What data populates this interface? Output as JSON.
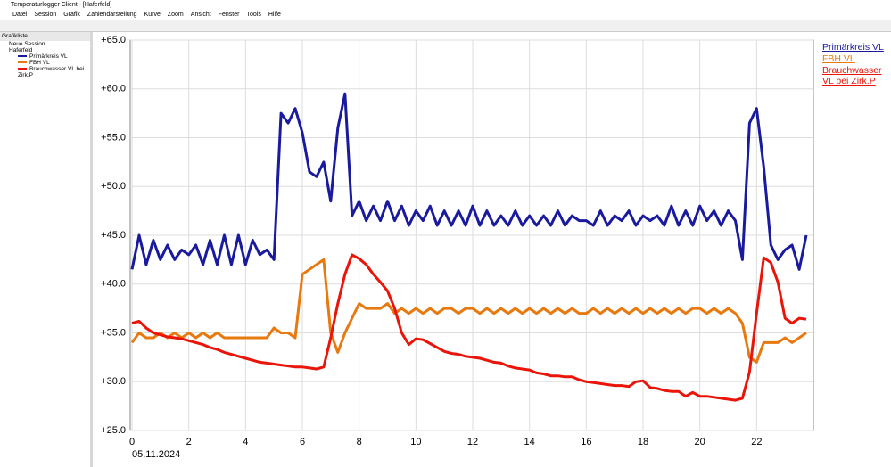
{
  "window": {
    "title": "Temperaturlogger Client - [Haferfeld]",
    "menu": [
      "Datei",
      "Session",
      "Grafik",
      "Zahlendarstellung",
      "Kurve",
      "Zoom",
      "Ansicht",
      "Fenster",
      "Tools",
      "Hilfe"
    ]
  },
  "panel": {
    "title": "Grafikliste",
    "items": [
      "Neue Session",
      "Haferfeld",
      "Primärkreis VL",
      "FBH VL",
      "Brauchwasser VL bei Zirk.P"
    ]
  },
  "chart_data": {
    "type": "line",
    "x_start_label": "05.11.2024",
    "x": [
      0,
      0.25,
      0.5,
      0.75,
      1,
      1.25,
      1.5,
      1.75,
      2,
      2.25,
      2.5,
      2.75,
      3,
      3.25,
      3.5,
      3.75,
      4,
      4.25,
      4.5,
      4.75,
      5,
      5.25,
      5.5,
      5.75,
      6,
      6.25,
      6.5,
      6.75,
      7,
      7.25,
      7.5,
      7.75,
      8,
      8.25,
      8.5,
      8.75,
      9,
      9.25,
      9.5,
      9.75,
      10,
      10.25,
      10.5,
      10.75,
      11,
      11.25,
      11.5,
      11.75,
      12,
      12.25,
      12.5,
      12.75,
      13,
      13.25,
      13.5,
      13.75,
      14,
      14.25,
      14.5,
      14.75,
      15,
      15.25,
      15.5,
      15.75,
      16,
      16.25,
      16.5,
      16.75,
      17,
      17.25,
      17.5,
      17.75,
      18,
      18.25,
      18.5,
      18.75,
      19,
      19.25,
      19.5,
      19.75,
      20,
      20.25,
      20.5,
      20.75,
      21,
      21.25,
      21.5,
      21.75,
      22,
      22.25,
      22.5,
      22.75,
      23,
      23.25,
      23.5,
      23.75
    ],
    "series": [
      {
        "name": "Primärkreis VL",
        "color": "#1a1a9e",
        "values": [
          41.5,
          45,
          42,
          44.5,
          42.5,
          44,
          42.5,
          43.5,
          43,
          44,
          42,
          44.5,
          42,
          45,
          42,
          45,
          42,
          44.5,
          43,
          43.5,
          42.5,
          57.5,
          56.5,
          58,
          55.5,
          51.5,
          51,
          52.5,
          48.5,
          56,
          59.5,
          47,
          48.5,
          46.5,
          48,
          46.5,
          48.5,
          46.5,
          48,
          46,
          47.5,
          46.5,
          48,
          46,
          47.5,
          46,
          47.5,
          46,
          48,
          46,
          47.5,
          46,
          47,
          46,
          47.5,
          46,
          47,
          46,
          47,
          46,
          47.5,
          46,
          47,
          46.5,
          46.5,
          46,
          47.5,
          46,
          47,
          46.5,
          47.5,
          46,
          47,
          46.5,
          47,
          46,
          48,
          46,
          47.5,
          46,
          48,
          46.5,
          47.5,
          46,
          47.5,
          46.5,
          42.5,
          56.5,
          58,
          52,
          44,
          42.5,
          43.5,
          44,
          41.5,
          45
        ]
      },
      {
        "name": "FBH VL",
        "color": "#e8790f",
        "values": [
          34,
          35,
          34.5,
          34.5,
          35,
          34.5,
          35,
          34.5,
          35,
          34.5,
          35,
          34.5,
          35,
          34.5,
          34.5,
          34.5,
          34.5,
          34.5,
          34.5,
          34.5,
          35.5,
          35,
          35,
          34.5,
          41,
          41.5,
          42,
          42.5,
          35,
          33,
          35,
          36.5,
          38,
          37.5,
          37.5,
          37.5,
          38,
          37,
          37.5,
          37,
          37.5,
          37,
          37.5,
          37,
          37.5,
          37.5,
          37,
          37.5,
          37.5,
          37,
          37.5,
          37,
          37.5,
          37,
          37.5,
          37,
          37.5,
          37,
          37.5,
          37,
          37.5,
          37,
          37.5,
          37,
          37,
          37.5,
          37,
          37.5,
          37,
          37.5,
          37,
          37.5,
          37,
          37.5,
          37,
          37.5,
          37,
          37.5,
          37,
          37.5,
          37.5,
          37,
          37.5,
          37,
          37.5,
          37,
          36,
          32.5,
          32,
          34,
          34,
          34,
          34.5,
          34,
          34.5,
          35
        ]
      },
      {
        "name": "Brauchwasser VL bei Zirk.P",
        "color": "#ea1409",
        "values": [
          36,
          36.2,
          35.5,
          35,
          34.8,
          34.6,
          34.5,
          34.4,
          34.2,
          34,
          33.8,
          33.5,
          33.3,
          33,
          32.8,
          32.6,
          32.4,
          32.2,
          32,
          31.9,
          31.8,
          31.7,
          31.6,
          31.5,
          31.5,
          31.4,
          31.3,
          31.5,
          34.5,
          38,
          41,
          43,
          42.6,
          42,
          41,
          40.2,
          39.3,
          37.5,
          35,
          33.8,
          34.4,
          34.3,
          33.9,
          33.5,
          33.1,
          32.9,
          32.8,
          32.6,
          32.5,
          32.4,
          32.2,
          32,
          31.9,
          31.6,
          31.4,
          31.3,
          31.2,
          30.9,
          30.8,
          30.6,
          30.6,
          30.5,
          30.5,
          30.2,
          30,
          29.9,
          29.8,
          29.7,
          29.6,
          29.6,
          29.5,
          30,
          30.1,
          29.4,
          29.3,
          29.1,
          29,
          29,
          28.5,
          28.9,
          28.5,
          28.5,
          28.4,
          28.3,
          28.2,
          28.1,
          28.3,
          31,
          37,
          42.7,
          42.2,
          40.2,
          36.5,
          36,
          36.5,
          36.4
        ]
      }
    ],
    "xlim": [
      0,
      24
    ],
    "xticks": [
      0,
      2,
      4,
      6,
      8,
      10,
      12,
      14,
      16,
      18,
      20,
      22
    ],
    "ylim": [
      25,
      65
    ],
    "yticks": [
      {
        "value": 25,
        "label": "+25.0"
      },
      {
        "value": 30,
        "label": "+30.0"
      },
      {
        "value": 35,
        "label": "+35.0"
      },
      {
        "value": 40,
        "label": "+40.0"
      },
      {
        "value": 45,
        "label": "+45.0"
      },
      {
        "value": 50,
        "label": "+50.0"
      },
      {
        "value": 55,
        "label": "+55.0"
      },
      {
        "value": 60,
        "label": "+60.0"
      },
      {
        "value": 65,
        "label": "+65.0"
      }
    ],
    "grid": true
  }
}
